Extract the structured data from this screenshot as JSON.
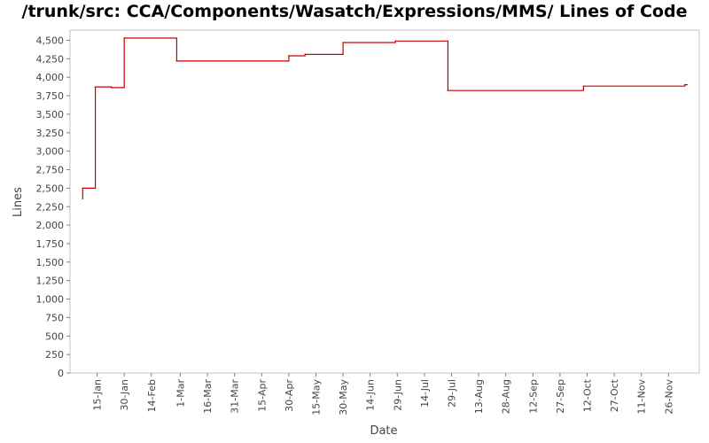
{
  "chart_data": {
    "type": "line",
    "title": "/trunk/src: CCA/Components/Wasatch/Expressions/MMS/ Lines of Code",
    "xlabel": "Date",
    "ylabel": "Lines",
    "step": true,
    "ylim": [
      0,
      4750
    ],
    "yticks": [
      0,
      250,
      500,
      750,
      1000,
      1250,
      1500,
      1750,
      2000,
      2250,
      2500,
      2750,
      3000,
      3250,
      3500,
      3750,
      4000,
      4250,
      4500
    ],
    "ytick_labels": [
      "0",
      "250",
      "500",
      "750",
      "1,000",
      "1,250",
      "1,500",
      "1,750",
      "2,000",
      "2,250",
      "2,500",
      "2,750",
      "3,000",
      "3,250",
      "3,500",
      "3,750",
      "4,000",
      "4,250",
      "4,500"
    ],
    "xlim": [
      "2011-12-31",
      "2012-12-13"
    ],
    "xticks": [
      "2012-01-15",
      "2012-01-30",
      "2012-02-14",
      "2012-03-01",
      "2012-03-16",
      "2012-03-31",
      "2012-04-15",
      "2012-04-30",
      "2012-05-15",
      "2012-05-30",
      "2012-06-14",
      "2012-06-29",
      "2012-07-14",
      "2012-07-29",
      "2012-08-13",
      "2012-08-28",
      "2012-09-12",
      "2012-09-27",
      "2012-10-12",
      "2012-10-27",
      "2012-11-11",
      "2012-11-26"
    ],
    "xtick_labels": [
      "15-Jan",
      "30-Jan",
      "14-Feb",
      "1-Mar",
      "16-Mar",
      "31-Mar",
      "15-Apr",
      "30-Apr",
      "15-May",
      "30-May",
      "14-Jun",
      "29-Jun",
      "14-Jul",
      "29-Jul",
      "13-Aug",
      "28-Aug",
      "12-Sep",
      "27-Sep",
      "12-Oct",
      "27-Oct",
      "11-Nov",
      "26-Nov"
    ],
    "grid": false,
    "series": [
      {
        "color": "#cc0000",
        "x": [
          "2012-01-07",
          "2012-01-07",
          "2012-01-14",
          "2012-01-23",
          "2012-01-30",
          "2012-02-28",
          "2012-04-30",
          "2012-05-09",
          "2012-05-30",
          "2012-06-28",
          "2012-07-27",
          "2012-10-10",
          "2012-12-05"
        ],
        "y": [
          2360,
          2500,
          3870,
          3860,
          4530,
          4220,
          4290,
          4310,
          4470,
          4490,
          3820,
          3880,
          3900
        ]
      }
    ]
  }
}
